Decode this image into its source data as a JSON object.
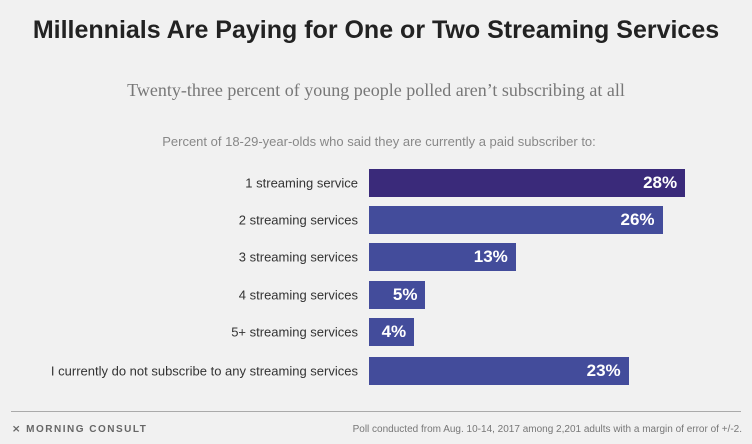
{
  "chart_data": {
    "type": "bar",
    "orientation": "horizontal",
    "title": "Millennials Are Paying for One or Two Streaming Services",
    "subtitle": "Twenty-three percent of young people polled aren’t subscribing at all",
    "description": "Percent of 18-29-year-olds who said they are currently  a paid subscriber to:",
    "categories": [
      "1 streaming service",
      "2 streaming services",
      "3 streaming services",
      "4 streaming services",
      "5+ streaming services",
      "I currently do not subscribe to any streaming services"
    ],
    "values": [
      28,
      26,
      13,
      5,
      4,
      23
    ],
    "labels": [
      "28%",
      "26%",
      "13%",
      "5%",
      "4%",
      "23%"
    ],
    "colors": [
      "#3a2a7a",
      "#434c9b",
      "#434c9b",
      "#434c9b",
      "#434c9b",
      "#434c9b"
    ],
    "grid": false
  },
  "footer": {
    "logo": "MORNING CONSULT",
    "note": "Poll conducted from Aug. 10-14, 2017 among 2,201 adults with a margin of error of +/-2."
  }
}
